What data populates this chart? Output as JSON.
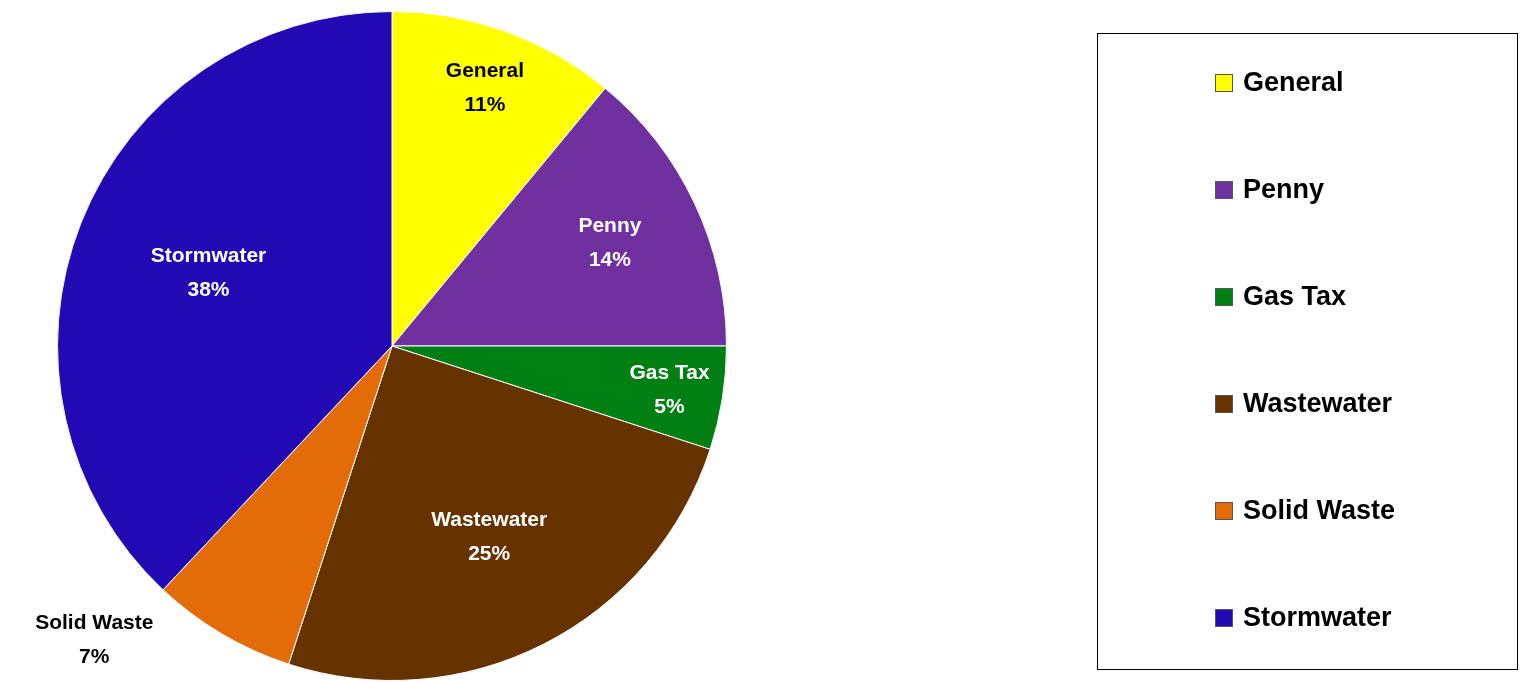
{
  "chart_data": {
    "type": "pie",
    "categories": [
      "General",
      "Penny",
      "Gas Tax",
      "Wastewater",
      "Solid Waste",
      "Stormwater"
    ],
    "values": [
      11,
      14,
      5,
      25,
      7,
      38
    ],
    "colors": [
      "#ffff00",
      "#7030a0",
      "#008012",
      "#663300",
      "#e36c09",
      "#2109b4"
    ],
    "value_labels": [
      "11%",
      "14%",
      "5%",
      "25%",
      "7%",
      "38%"
    ],
    "legend": "right"
  }
}
